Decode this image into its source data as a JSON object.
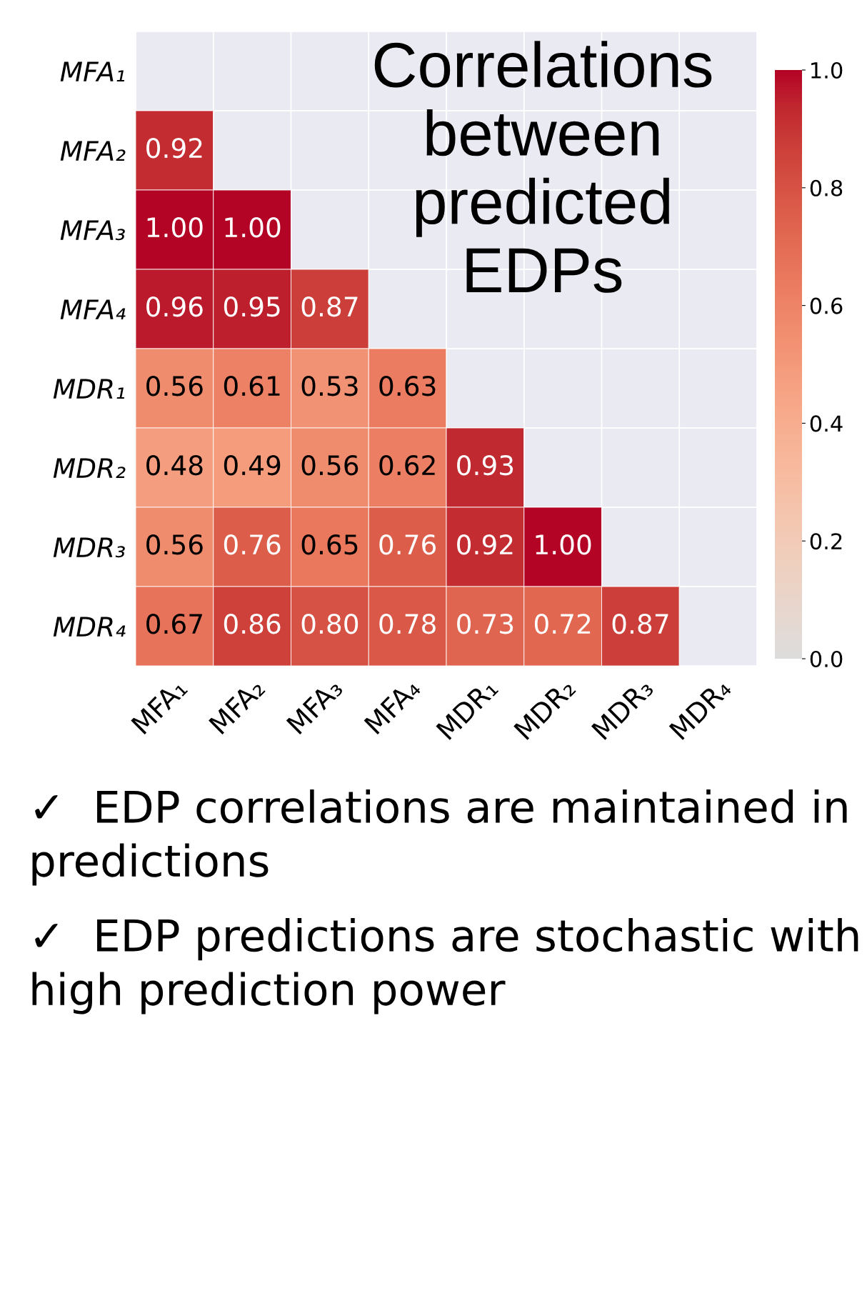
{
  "chart_data": {
    "type": "heatmap",
    "title": "Correlations between predicted EDPs",
    "categories": [
      "MFA₁",
      "MFA₂",
      "MFA₃",
      "MFA₄",
      "MDR₁",
      "MDR₂",
      "MDR₃",
      "MDR₄"
    ],
    "y_categories": [
      "MFA₁",
      "MFA₂",
      "MFA₃",
      "MFA₄",
      "MDR₁",
      "MDR₂",
      "MDR₃",
      "MDR₄"
    ],
    "cells": [
      [
        null,
        null,
        null,
        null,
        null,
        null,
        null,
        null
      ],
      [
        0.92,
        null,
        null,
        null,
        null,
        null,
        null,
        null
      ],
      [
        1.0,
        1.0,
        null,
        null,
        null,
        null,
        null,
        null
      ],
      [
        0.96,
        0.95,
        0.87,
        null,
        null,
        null,
        null,
        null
      ],
      [
        0.56,
        0.61,
        0.53,
        0.63,
        null,
        null,
        null,
        null
      ],
      [
        0.48,
        0.49,
        0.56,
        0.62,
        0.93,
        null,
        null,
        null
      ],
      [
        0.56,
        0.76,
        0.65,
        0.76,
        0.92,
        1.0,
        null,
        null
      ],
      [
        0.67,
        0.86,
        0.8,
        0.78,
        0.73,
        0.72,
        0.87,
        null
      ]
    ],
    "cell_labels": [
      [
        null,
        null,
        null,
        null,
        null,
        null,
        null,
        null
      ],
      [
        "0.92",
        null,
        null,
        null,
        null,
        null,
        null,
        null
      ],
      [
        "1.00",
        "1.00",
        null,
        null,
        null,
        null,
        null,
        null
      ],
      [
        "0.96",
        "0.95",
        "0.87",
        null,
        null,
        null,
        null,
        null
      ],
      [
        "0.56",
        "0.61",
        "0.53",
        "0.63",
        null,
        null,
        null,
        null
      ],
      [
        "0.48",
        "0.49",
        "0.56",
        "0.62",
        "0.93",
        null,
        null,
        null
      ],
      [
        "0.56",
        "0.76",
        "0.65",
        "0.76",
        "0.92",
        "1.00",
        null,
        null
      ],
      [
        "0.67",
        "0.86",
        "0.80",
        "0.78",
        "0.73",
        "0.72",
        "0.87",
        null
      ]
    ],
    "clim": [
      0.0,
      1.0
    ],
    "cticks": [
      {
        "value": 0.0,
        "label": "0.0"
      },
      {
        "value": 0.2,
        "label": "0.2"
      },
      {
        "value": 0.4,
        "label": "0.4"
      },
      {
        "value": 0.6,
        "label": "0.6"
      },
      {
        "value": 0.8,
        "label": "0.8"
      },
      {
        "value": 1.0,
        "label": "1.0"
      }
    ],
    "grid": true,
    "annotations": [
      "✓  EDP correlations are maintained in predictions",
      "✓  EDP predictions are stochastic with high prediction power"
    ]
  }
}
